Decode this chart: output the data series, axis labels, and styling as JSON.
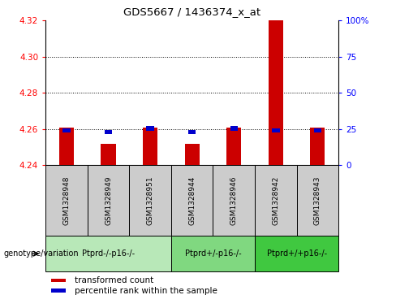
{
  "title": "GDS5667 / 1436374_x_at",
  "samples": [
    "GSM1328948",
    "GSM1328949",
    "GSM1328951",
    "GSM1328944",
    "GSM1328946",
    "GSM1328942",
    "GSM1328943"
  ],
  "red_values": [
    4.261,
    4.252,
    4.261,
    4.252,
    4.261,
    4.32,
    4.261
  ],
  "blue_values": [
    4.258,
    4.257,
    4.259,
    4.257,
    4.259,
    4.258,
    4.258
  ],
  "bar_bottom": 4.24,
  "ylim_left": [
    4.24,
    4.32
  ],
  "ylim_right": [
    0,
    100
  ],
  "yticks_left": [
    4.24,
    4.26,
    4.28,
    4.3,
    4.32
  ],
  "yticks_right": [
    0,
    25,
    50,
    75,
    100
  ],
  "ytick_labels_right": [
    "0",
    "25",
    "50",
    "75",
    "100%"
  ],
  "groups": [
    {
      "label": "Ptprd-/-p16-/-",
      "samples": [
        "GSM1328948",
        "GSM1328949",
        "GSM1328951"
      ],
      "color": "#b8e8b8"
    },
    {
      "label": "Ptprd+/-p16-/-",
      "samples": [
        "GSM1328944",
        "GSM1328946"
      ],
      "color": "#80d880"
    },
    {
      "label": "Ptprd+/+p16-/-",
      "samples": [
        "GSM1328942",
        "GSM1328943"
      ],
      "color": "#40c840"
    }
  ],
  "red_color": "#cc0000",
  "blue_color": "#0000cc",
  "bar_width": 0.35,
  "blue_bar_width": 0.18,
  "blue_bar_height": 0.0025,
  "sample_bg_color": "#cccccc",
  "legend_red": "transformed count",
  "legend_blue": "percentile rank within the sample",
  "genotype_label": "genotype/variation"
}
